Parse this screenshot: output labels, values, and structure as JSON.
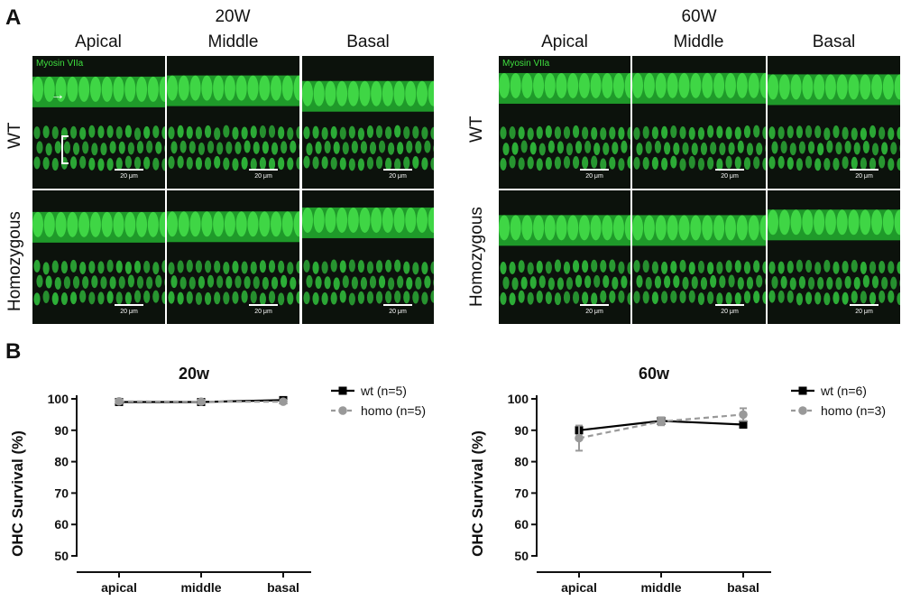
{
  "panel_a": {
    "letter": "A",
    "groups": [
      {
        "title": "20W",
        "columns": [
          "Apical",
          "Middle",
          "Basal"
        ],
        "rows": [
          "WT",
          "Homozygous"
        ],
        "marker": "Myosin VIIa"
      },
      {
        "title": "60W",
        "columns": [
          "Apical",
          "Middle",
          "Basal"
        ],
        "rows": [
          "WT",
          "Homozygous"
        ],
        "marker": "Myosin VIIa"
      }
    ],
    "scale_label": "20 μm"
  },
  "panel_b": {
    "letter": "B"
  },
  "chart_data": [
    {
      "type": "line",
      "title": "20w",
      "ylabel": "OHC Survival (%)",
      "xlabel": "",
      "categories": [
        "apical",
        "middle",
        "basal"
      ],
      "ylim": [
        50,
        100
      ],
      "yticks": [
        50,
        60,
        70,
        80,
        90,
        100
      ],
      "series": [
        {
          "name": "wt (n=5)",
          "values": [
            99.0,
            99.0,
            99.6
          ],
          "errors": [
            0.5,
            0.4,
            0.4
          ],
          "color": "#000000",
          "marker": "square",
          "dash": false
        },
        {
          "name": "homo (n=5)",
          "values": [
            99.2,
            99.1,
            99.1
          ],
          "errors": [
            0.6,
            0.5,
            0.5
          ],
          "color": "#999999",
          "marker": "circle",
          "dash": true
        }
      ]
    },
    {
      "type": "line",
      "title": "60w",
      "ylabel": "OHC Survival (%)",
      "xlabel": "",
      "categories": [
        "apical",
        "middle",
        "basal"
      ],
      "ylim": [
        50,
        100
      ],
      "yticks": [
        50,
        60,
        70,
        80,
        90,
        100
      ],
      "series": [
        {
          "name": "wt (n=6)",
          "values": [
            90.0,
            93.0,
            91.8
          ],
          "errors": [
            1.0,
            1.0,
            0.8
          ],
          "color": "#000000",
          "marker": "square",
          "dash": false
        },
        {
          "name": "homo (n=3)",
          "values": [
            87.5,
            92.8,
            95.0
          ],
          "errors": [
            4.0,
            1.2,
            2.0
          ],
          "color": "#999999",
          "marker": "circle",
          "dash": true
        }
      ]
    }
  ]
}
